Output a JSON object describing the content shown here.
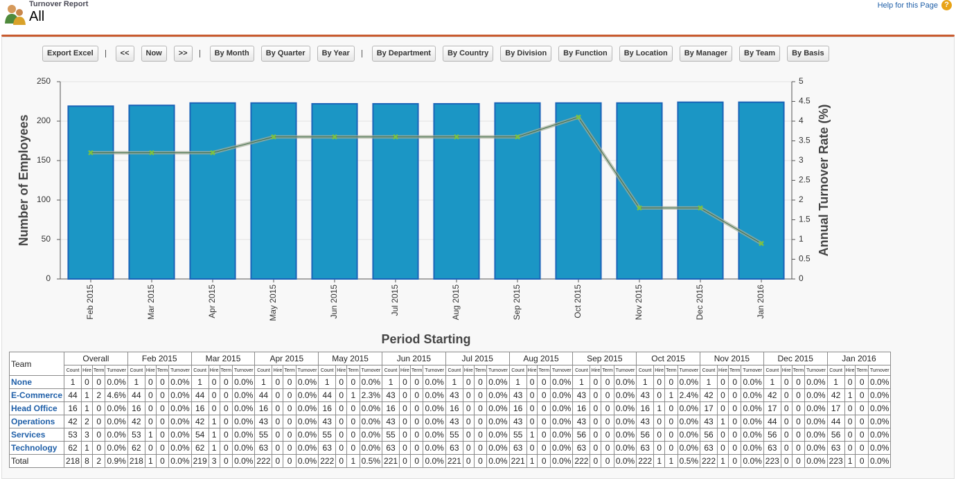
{
  "header": {
    "subtitle": "Turnover Report",
    "title": "All",
    "help": "Help for this Page",
    "help_icon": "?"
  },
  "toolbar": {
    "buttons": [
      "Export Excel",
      "<<",
      "Now",
      ">>",
      "By Month",
      "By Quarter",
      "By Year",
      "By Department",
      "By Country",
      "By Division",
      "By Function",
      "By Location",
      "By Manager",
      "By Team",
      "By Basis"
    ]
  },
  "chart_data": {
    "type": "combo",
    "categories": [
      "Feb 2015",
      "Mar 2015",
      "Apr 2015",
      "May 2015",
      "Jun 2015",
      "Jul 2015",
      "Aug 2015",
      "Sep 2015",
      "Oct 2015",
      "Nov 2015",
      "Dec 2015",
      "Jan 2016"
    ],
    "series": [
      {
        "type": "bar",
        "color": "#1b96c5",
        "border_color": "#1a63b8",
        "values": [
          219,
          220,
          223,
          223,
          222,
          222,
          222,
          223,
          223,
          223,
          224,
          224
        ]
      },
      {
        "type": "line",
        "axis": "y2",
        "color": "#a3ad98",
        "marker_color": "#7cc142",
        "values": [
          3.2,
          3.2,
          3.2,
          3.6,
          3.6,
          3.6,
          3.6,
          3.6,
          4.1,
          1.8,
          1.8,
          0.9
        ]
      }
    ],
    "y_label": "Number of Employees",
    "y2_label": "Annual Turnover Rate (%)",
    "x_label": "Period Starting",
    "ylim": [
      0,
      250
    ],
    "yticks": [
      0,
      50,
      100,
      150,
      200,
      250
    ],
    "y2lim": [
      0,
      5
    ],
    "y2ticks": [
      0,
      0.5,
      1,
      1.5,
      2,
      2.5,
      3,
      3.5,
      4,
      4.5,
      5
    ],
    "grid": true
  },
  "table": {
    "team_header": "Team",
    "groups": [
      "Overall",
      "Feb 2015",
      "Mar 2015",
      "Apr 2015",
      "May 2015",
      "Jun 2015",
      "Jul 2015",
      "Aug 2015",
      "Sep 2015",
      "Oct 2015",
      "Nov 2015",
      "Dec 2015",
      "Jan 2016"
    ],
    "sub": [
      "Count",
      "Hire",
      "Term",
      "Turnover"
    ],
    "rows": [
      {
        "team": "None",
        "cells": [
          [
            "1",
            "0",
            "0",
            "0.0%"
          ],
          [
            "1",
            "0",
            "0",
            "0.0%"
          ],
          [
            "1",
            "0",
            "0",
            "0.0%"
          ],
          [
            "1",
            "0",
            "0",
            "0.0%"
          ],
          [
            "1",
            "0",
            "0",
            "0.0%"
          ],
          [
            "1",
            "0",
            "0",
            "0.0%"
          ],
          [
            "1",
            "0",
            "0",
            "0.0%"
          ],
          [
            "1",
            "0",
            "0",
            "0.0%"
          ],
          [
            "1",
            "0",
            "0",
            "0.0%"
          ],
          [
            "1",
            "0",
            "0",
            "0.0%"
          ],
          [
            "1",
            "0",
            "0",
            "0.0%"
          ],
          [
            "1",
            "0",
            "0",
            "0.0%"
          ],
          [
            "1",
            "0",
            "0",
            "0.0%"
          ]
        ]
      },
      {
        "team": "E-Commerce",
        "cells": [
          [
            "44",
            "1",
            "2",
            "4.6%"
          ],
          [
            "44",
            "0",
            "0",
            "0.0%"
          ],
          [
            "44",
            "0",
            "0",
            "0.0%"
          ],
          [
            "44",
            "0",
            "0",
            "0.0%"
          ],
          [
            "44",
            "0",
            "1",
            "2.3%"
          ],
          [
            "43",
            "0",
            "0",
            "0.0%"
          ],
          [
            "43",
            "0",
            "0",
            "0.0%"
          ],
          [
            "43",
            "0",
            "0",
            "0.0%"
          ],
          [
            "43",
            "0",
            "0",
            "0.0%"
          ],
          [
            "43",
            "0",
            "1",
            "2.4%"
          ],
          [
            "42",
            "0",
            "0",
            "0.0%"
          ],
          [
            "42",
            "0",
            "0",
            "0.0%"
          ],
          [
            "42",
            "1",
            "0",
            "0.0%"
          ]
        ]
      },
      {
        "team": "Head Office",
        "cells": [
          [
            "16",
            "1",
            "0",
            "0.0%"
          ],
          [
            "16",
            "0",
            "0",
            "0.0%"
          ],
          [
            "16",
            "0",
            "0",
            "0.0%"
          ],
          [
            "16",
            "0",
            "0",
            "0.0%"
          ],
          [
            "16",
            "0",
            "0",
            "0.0%"
          ],
          [
            "16",
            "0",
            "0",
            "0.0%"
          ],
          [
            "16",
            "0",
            "0",
            "0.0%"
          ],
          [
            "16",
            "0",
            "0",
            "0.0%"
          ],
          [
            "16",
            "0",
            "0",
            "0.0%"
          ],
          [
            "16",
            "1",
            "0",
            "0.0%"
          ],
          [
            "17",
            "0",
            "0",
            "0.0%"
          ],
          [
            "17",
            "0",
            "0",
            "0.0%"
          ],
          [
            "17",
            "0",
            "0",
            "0.0%"
          ]
        ]
      },
      {
        "team": "Operations",
        "cells": [
          [
            "42",
            "2",
            "0",
            "0.0%"
          ],
          [
            "42",
            "0",
            "0",
            "0.0%"
          ],
          [
            "42",
            "1",
            "0",
            "0.0%"
          ],
          [
            "43",
            "0",
            "0",
            "0.0%"
          ],
          [
            "43",
            "0",
            "0",
            "0.0%"
          ],
          [
            "43",
            "0",
            "0",
            "0.0%"
          ],
          [
            "43",
            "0",
            "0",
            "0.0%"
          ],
          [
            "43",
            "0",
            "0",
            "0.0%"
          ],
          [
            "43",
            "0",
            "0",
            "0.0%"
          ],
          [
            "43",
            "0",
            "0",
            "0.0%"
          ],
          [
            "43",
            "1",
            "0",
            "0.0%"
          ],
          [
            "44",
            "0",
            "0",
            "0.0%"
          ],
          [
            "44",
            "0",
            "0",
            "0.0%"
          ]
        ]
      },
      {
        "team": "Services",
        "cells": [
          [
            "53",
            "3",
            "0",
            "0.0%"
          ],
          [
            "53",
            "1",
            "0",
            "0.0%"
          ],
          [
            "54",
            "1",
            "0",
            "0.0%"
          ],
          [
            "55",
            "0",
            "0",
            "0.0%"
          ],
          [
            "55",
            "0",
            "0",
            "0.0%"
          ],
          [
            "55",
            "0",
            "0",
            "0.0%"
          ],
          [
            "55",
            "0",
            "0",
            "0.0%"
          ],
          [
            "55",
            "1",
            "0",
            "0.0%"
          ],
          [
            "56",
            "0",
            "0",
            "0.0%"
          ],
          [
            "56",
            "0",
            "0",
            "0.0%"
          ],
          [
            "56",
            "0",
            "0",
            "0.0%"
          ],
          [
            "56",
            "0",
            "0",
            "0.0%"
          ],
          [
            "56",
            "0",
            "0",
            "0.0%"
          ]
        ]
      },
      {
        "team": "Technology",
        "cells": [
          [
            "62",
            "1",
            "0",
            "0.0%"
          ],
          [
            "62",
            "0",
            "0",
            "0.0%"
          ],
          [
            "62",
            "1",
            "0",
            "0.0%"
          ],
          [
            "63",
            "0",
            "0",
            "0.0%"
          ],
          [
            "63",
            "0",
            "0",
            "0.0%"
          ],
          [
            "63",
            "0",
            "0",
            "0.0%"
          ],
          [
            "63",
            "0",
            "0",
            "0.0%"
          ],
          [
            "63",
            "0",
            "0",
            "0.0%"
          ],
          [
            "63",
            "0",
            "0",
            "0.0%"
          ],
          [
            "63",
            "0",
            "0",
            "0.0%"
          ],
          [
            "63",
            "0",
            "0",
            "0.0%"
          ],
          [
            "63",
            "0",
            "0",
            "0.0%"
          ],
          [
            "63",
            "0",
            "0",
            "0.0%"
          ]
        ]
      },
      {
        "team": "Total",
        "cells": [
          [
            "218",
            "8",
            "2",
            "0.9%"
          ],
          [
            "218",
            "1",
            "0",
            "0.0%"
          ],
          [
            "219",
            "3",
            "0",
            "0.0%"
          ],
          [
            "222",
            "0",
            "0",
            "0.0%"
          ],
          [
            "222",
            "0",
            "1",
            "0.5%"
          ],
          [
            "221",
            "0",
            "0",
            "0.0%"
          ],
          [
            "221",
            "0",
            "0",
            "0.0%"
          ],
          [
            "221",
            "1",
            "0",
            "0.0%"
          ],
          [
            "222",
            "0",
            "0",
            "0.0%"
          ],
          [
            "222",
            "1",
            "1",
            "0.5%"
          ],
          [
            "222",
            "1",
            "0",
            "0.0%"
          ],
          [
            "223",
            "0",
            "0",
            "0.0%"
          ],
          [
            "223",
            "1",
            "0",
            "0.0%"
          ]
        ]
      }
    ]
  }
}
